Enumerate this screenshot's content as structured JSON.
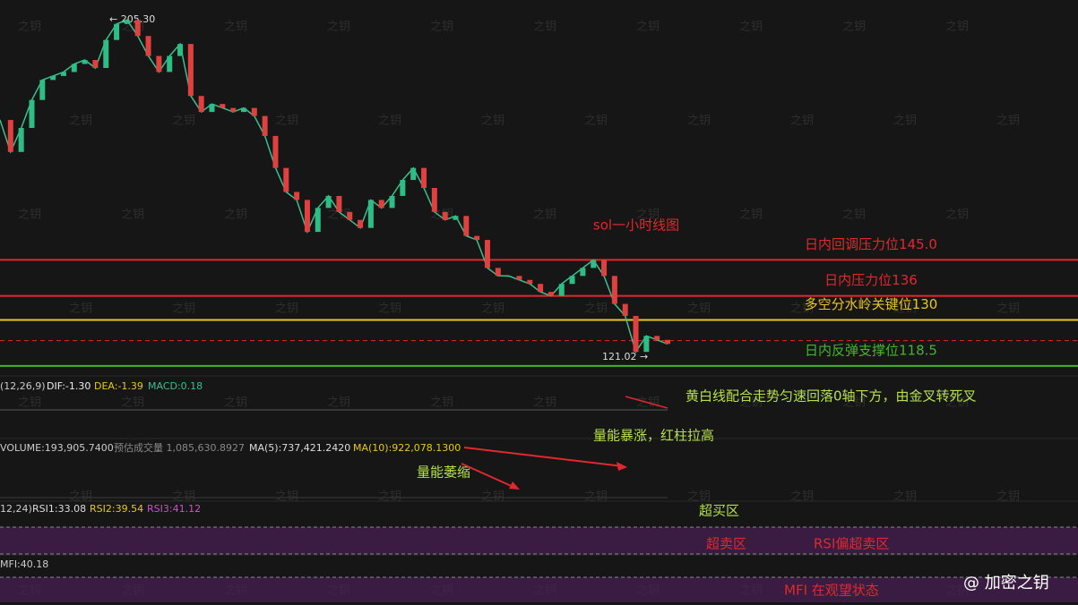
{
  "watermark": "之钥",
  "brand": "@ 加密之钥",
  "price_panel": {
    "title": "sol一小时线图",
    "ylim": [
      116,
      210
    ],
    "high_label": "← 205.30",
    "low_label": "121.02 →",
    "values": [
      180,
      172,
      178,
      185,
      190,
      191,
      192,
      194,
      195,
      193,
      200,
      204,
      205,
      201,
      196,
      192,
      196,
      199,
      186,
      182,
      184,
      183,
      182,
      183,
      181,
      176,
      168,
      162,
      160,
      152,
      158,
      161,
      157,
      155,
      153,
      160,
      158,
      161,
      165,
      168,
      163,
      157,
      155,
      156,
      151,
      150,
      143,
      141,
      141,
      140,
      139,
      137,
      136,
      139,
      141,
      143,
      145,
      141,
      134,
      131,
      122,
      126,
      125,
      124
    ],
    "last_price": 124.8,
    "levels": [
      {
        "label": "日内回调压力位145.0",
        "value": 145,
        "color": "#e0282e"
      },
      {
        "label": "日内压力位136",
        "value": 136,
        "color": "#e0282e"
      },
      {
        "label": "多空分水岭关键位130",
        "value": 130,
        "color": "#e8c81e"
      },
      {
        "label": "日内反弹支撑位118.5",
        "value": 118.5,
        "color": "#44b52c"
      }
    ]
  },
  "macd_panel": {
    "params": "(12,26,9)",
    "dif": "DIF:-1.30",
    "dea": "DEA:-1.39",
    "macd": "MACD:0.18",
    "note": "黄白线配合走势匀速回落0轴下方，由金叉转死叉",
    "note2": "量能暴涨，红柱拉高"
  },
  "volume_panel": {
    "volume": "VOLUME:193,905.7400",
    "estimate": "预估成交量 1,085,630.8927",
    "ma5": "MA(5):737,421.2420",
    "ma10": "MA(10):922,078.1300",
    "note": "量能萎缩"
  },
  "rsi_panel": {
    "params": "12,24)",
    "rsi1": "RSI1:33.08",
    "rsi2": "RSI2:39.54",
    "rsi3": "RSI3:41.12",
    "overbought": "超买区",
    "oversold": "超卖区",
    "note": "RSI偏超卖区"
  },
  "mfi_panel": {
    "mfi": "MFI:40.18",
    "note": "MFI 在观望状态"
  }
}
